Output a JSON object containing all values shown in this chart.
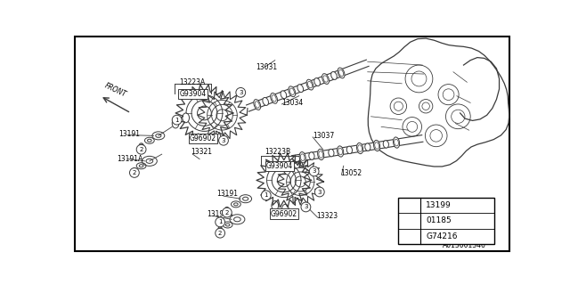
{
  "bg_color": "#ffffff",
  "border_color": "#000000",
  "line_color": "#3a3a3a",
  "text_color": "#000000",
  "legend_items": [
    {
      "symbol": "1",
      "label": "13199"
    },
    {
      "symbol": "2",
      "label": "01185"
    },
    {
      "symbol": "3",
      "label": "G74216"
    }
  ],
  "fig_width": 6.4,
  "fig_height": 3.2,
  "dpi": 100
}
